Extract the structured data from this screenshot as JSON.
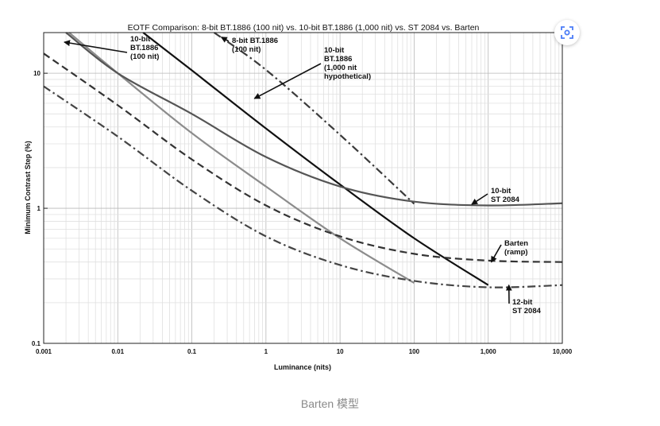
{
  "chart_data": {
    "type": "line",
    "title": "EOTF Comparison: 8-bit BT.1886 (100 nit) vs. 10-bit BT.1886 (1,000 nit) vs. ST 2084 vs. Barten",
    "xlabel": "Luminance (nits)",
    "ylabel": "Minimum Contrast Step (%)",
    "x_scale": "log",
    "y_scale": "log",
    "xlim": [
      0.001,
      10000
    ],
    "ylim": [
      0.1,
      20
    ],
    "grid": true,
    "x_ticks": [
      0.001,
      0.01,
      0.1,
      1,
      10,
      100,
      1000,
      10000
    ],
    "x_tick_labels": [
      "0.001",
      "0.01",
      "0.1",
      "1",
      "10",
      "100",
      "1,000",
      "10,000"
    ],
    "y_ticks": [
      0.1,
      1,
      10
    ],
    "y_tick_labels": [
      "0.1",
      "1",
      "10"
    ],
    "series": [
      {
        "name": "8-bit BT.1886 (100 nit)",
        "style": "dash-dot",
        "color": "#3a3a3a",
        "points": [
          [
            0.2,
            20
          ],
          [
            1,
            10.6
          ],
          [
            10,
            3.5
          ],
          [
            100,
            1.08
          ]
        ]
      },
      {
        "name": "10-bit BT.1886 (100 nit)",
        "style": "solid",
        "color": "#8c8c8c",
        "points": [
          [
            0.0022,
            20
          ],
          [
            0.01,
            10
          ],
          [
            0.1,
            3.6
          ],
          [
            1,
            1.45
          ],
          [
            10,
            0.6
          ],
          [
            100,
            0.28
          ]
        ]
      },
      {
        "name": "10-bit BT.1886 (1,000 nit hypothetical)",
        "style": "solid",
        "color": "#111111",
        "points": [
          [
            0.022,
            20
          ],
          [
            0.1,
            10.5
          ],
          [
            1,
            3.9
          ],
          [
            10,
            1.5
          ],
          [
            100,
            0.6
          ],
          [
            1000,
            0.27
          ]
        ]
      },
      {
        "name": "10-bit ST 2084",
        "style": "solid",
        "color": "#555555",
        "points": [
          [
            0.002,
            20
          ],
          [
            0.01,
            10
          ],
          [
            0.1,
            5
          ],
          [
            1,
            2.4
          ],
          [
            10,
            1.45
          ],
          [
            100,
            1.12
          ],
          [
            1000,
            1.05
          ],
          [
            10000,
            1.09
          ]
        ]
      },
      {
        "name": "Barten (ramp)",
        "style": "dashed",
        "color": "#333333",
        "points": [
          [
            0.001,
            14
          ],
          [
            0.01,
            5.8
          ],
          [
            0.1,
            2.3
          ],
          [
            1,
            1.05
          ],
          [
            10,
            0.62
          ],
          [
            100,
            0.46
          ],
          [
            1000,
            0.41
          ],
          [
            10000,
            0.4
          ]
        ]
      },
      {
        "name": "12-bit ST 2084",
        "style": "dash-dot",
        "color": "#444444",
        "points": [
          [
            0.001,
            8
          ],
          [
            0.01,
            3.4
          ],
          [
            0.1,
            1.35
          ],
          [
            1,
            0.62
          ],
          [
            10,
            0.38
          ],
          [
            100,
            0.29
          ],
          [
            1000,
            0.26
          ],
          [
            10000,
            0.27
          ]
        ]
      }
    ],
    "annotations": [
      {
        "lines": [
          "10-bit",
          "BT.1886",
          "(100 nit)"
        ],
        "target": [
          0.0019,
          17
        ]
      },
      {
        "lines": [
          "8-bit BT.1886",
          "(100 nit)"
        ],
        "target": [
          0.25,
          18.5
        ]
      },
      {
        "lines": [
          "10-bit",
          "BT.1886",
          "(1,000 nit",
          "hypothetical)"
        ],
        "target": [
          0.7,
          6.5
        ]
      },
      {
        "lines": [
          "10-bit",
          "ST 2084"
        ],
        "target": [
          600,
          1.07
        ]
      },
      {
        "lines": [
          "Barten",
          "(ramp)"
        ],
        "target": [
          1100,
          0.4
        ]
      },
      {
        "lines": [
          "12-bit",
          "ST 2084"
        ],
        "target": [
          1900,
          0.27
        ]
      }
    ]
  },
  "caption": "Barten 模型",
  "toolbar": {
    "scan_icon": "scan-icon",
    "accent": "#4a7cf7"
  }
}
